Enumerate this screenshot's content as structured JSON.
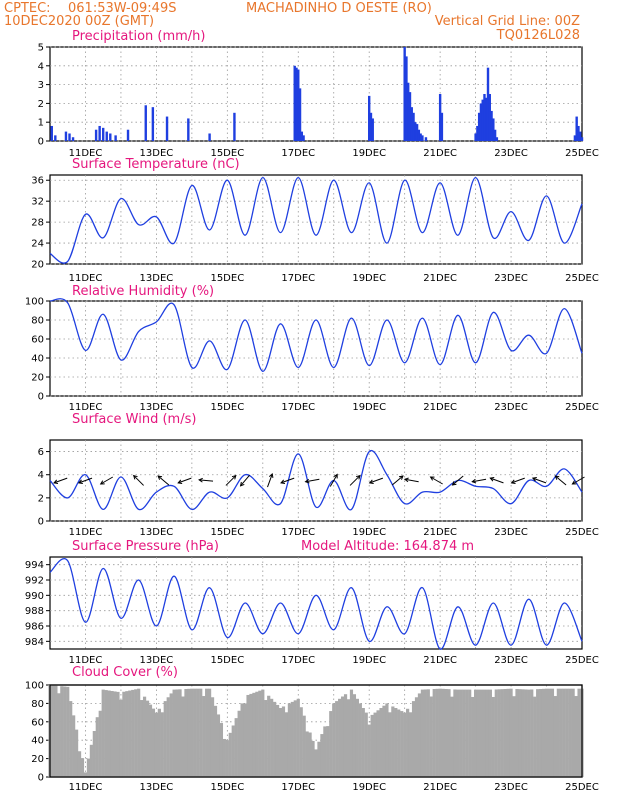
{
  "header": {
    "source": "CPTEC:",
    "coords": "061:53W-09:49S",
    "location": "MACHADINHO D OESTE (RO)",
    "datetime": "10DEC2020 00Z (GMT)",
    "grid_note": "Vertical Grid Line: 00Z",
    "code": "TQ0126L028"
  },
  "colors": {
    "header": "#e8762c",
    "panel_title": "#e5177e",
    "series": "#1f3fe0",
    "cloud": "#a9a9a9",
    "grid": "#9a9a9a"
  },
  "x_ticks": [
    "11DEC",
    "13DEC",
    "15DEC",
    "17DEC",
    "19DEC",
    "21DEC",
    "23DEC",
    "25DEC"
  ],
  "altitude_label": "Model Altitude: 164.874 m",
  "chart_data": [
    {
      "type": "bar",
      "title": "Precipitation (mm/h)",
      "ylim": [
        0,
        5
      ],
      "yticks": [
        0,
        1,
        2,
        3,
        4,
        5
      ],
      "x_day_range": [
        10,
        25
      ],
      "x": [
        10.05,
        10.15,
        10.45,
        10.55,
        10.65,
        11.3,
        11.4,
        11.5,
        11.6,
        11.7,
        11.85,
        12.2,
        12.7,
        12.9,
        13.3,
        13.9,
        14.5,
        15.2,
        16.9,
        16.95,
        17.0,
        17.05,
        17.1,
        17.15,
        19.0,
        19.05,
        19.1,
        20.0,
        20.05,
        20.1,
        20.15,
        20.2,
        20.25,
        20.3,
        20.35,
        20.4,
        20.45,
        20.5,
        20.6,
        21.0,
        21.05,
        22.0,
        22.05,
        22.1,
        22.15,
        22.2,
        22.25,
        22.3,
        22.35,
        22.4,
        22.45,
        22.5,
        22.55,
        22.6,
        24.8,
        24.85,
        24.9,
        24.95,
        25.0
      ],
      "values": [
        0.8,
        0.3,
        0.5,
        0.4,
        0.2,
        0.6,
        0.8,
        0.7,
        0.5,
        0.4,
        0.3,
        0.6,
        1.9,
        1.8,
        1.3,
        1.2,
        0.4,
        1.5,
        4.0,
        3.9,
        3.8,
        2.8,
        0.5,
        0.3,
        2.4,
        1.5,
        1.2,
        5.0,
        4.5,
        3.1,
        2.6,
        1.8,
        1.5,
        1.0,
        0.9,
        0.6,
        0.4,
        0.3,
        0.2,
        2.5,
        1.5,
        0.4,
        0.8,
        1.5,
        2.0,
        2.2,
        2.5,
        2.3,
        3.9,
        2.5,
        1.6,
        1.2,
        0.6,
        0.2,
        0.3,
        1.3,
        0.8,
        0.5,
        0.2
      ]
    },
    {
      "type": "line",
      "title": "Surface Temperature (nC)",
      "ylim": [
        20,
        37
      ],
      "yticks": [
        20,
        24,
        28,
        32,
        36
      ],
      "x": [
        10.0,
        10.5,
        11.0,
        11.5,
        12.0,
        12.5,
        13.0,
        13.5,
        14.0,
        14.5,
        15.0,
        15.5,
        16.0,
        16.5,
        17.0,
        17.5,
        18.0,
        18.5,
        19.0,
        19.5,
        20.0,
        20.5,
        21.0,
        21.5,
        22.0,
        22.5,
        23.0,
        23.5,
        24.0,
        24.5,
        25.0
      ],
      "values": [
        22.0,
        20.5,
        29.5,
        25.0,
        32.5,
        27.5,
        29.0,
        24.0,
        35.0,
        26.5,
        36.0,
        25.5,
        36.5,
        26.0,
        36.5,
        25.5,
        36.0,
        26.0,
        35.5,
        24.0,
        36.0,
        26.0,
        35.5,
        25.5,
        36.5,
        25.0,
        30.0,
        24.5,
        33.0,
        24.0,
        31.5
      ]
    },
    {
      "type": "line",
      "title": "Relative Humidity (%)",
      "ylim": [
        0,
        100
      ],
      "yticks": [
        0,
        20,
        40,
        60,
        80,
        100
      ],
      "x": [
        10.0,
        10.5,
        11.0,
        11.5,
        12.0,
        12.5,
        13.0,
        13.5,
        14.0,
        14.5,
        15.0,
        15.5,
        16.0,
        16.5,
        17.0,
        17.5,
        18.0,
        18.5,
        19.0,
        19.5,
        20.0,
        20.5,
        21.0,
        21.5,
        22.0,
        22.5,
        23.0,
        23.5,
        24.0,
        24.5,
        25.0
      ],
      "values": [
        100,
        98,
        48,
        86,
        38,
        68,
        78,
        96,
        30,
        58,
        28,
        80,
        26,
        76,
        30,
        80,
        30,
        82,
        32,
        80,
        35,
        82,
        33,
        85,
        35,
        88,
        48,
        64,
        45,
        92,
        45
      ]
    },
    {
      "type": "line",
      "title": "Surface Wind (m/s)",
      "ylim": [
        0,
        7
      ],
      "yticks": [
        0,
        2,
        4,
        6
      ],
      "x": [
        10.0,
        10.5,
        11.0,
        11.5,
        12.0,
        12.5,
        13.0,
        13.5,
        14.0,
        14.5,
        15.0,
        15.5,
        16.0,
        16.5,
        17.0,
        17.5,
        18.0,
        18.5,
        19.0,
        19.5,
        20.0,
        20.5,
        21.0,
        21.5,
        22.0,
        22.5,
        23.0,
        23.5,
        24.0,
        24.5,
        25.0
      ],
      "values": [
        3.5,
        2.0,
        4.0,
        1.0,
        3.8,
        1.0,
        2.5,
        3.0,
        1.0,
        2.5,
        2.0,
        4.0,
        2.8,
        1.5,
        5.8,
        1.2,
        3.5,
        1.0,
        6.0,
        4.0,
        1.5,
        2.5,
        2.5,
        3.5,
        3.0,
        2.8,
        1.5,
        3.5,
        3.0,
        4.5,
        2.5
      ],
      "arrows_x": [
        10.3,
        11.0,
        11.6,
        12.5,
        13.2,
        13.8,
        14.4,
        15.1,
        15.5,
        16.2,
        16.7,
        17.4,
        18.0,
        18.6,
        19.2,
        19.8,
        20.2,
        20.9,
        21.5,
        22.1,
        22.6,
        23.2,
        23.8,
        24.4,
        24.9
      ],
      "arrows_dir_deg": [
        200,
        200,
        210,
        135,
        140,
        200,
        175,
        45,
        230,
        70,
        200,
        190,
        60,
        45,
        200,
        40,
        170,
        150,
        220,
        190,
        160,
        200,
        160,
        140,
        210
      ]
    },
    {
      "type": "line",
      "title": "Surface Pressure (hPa)",
      "ylim": [
        983,
        995
      ],
      "yticks": [
        984,
        986,
        988,
        990,
        992,
        994
      ],
      "x": [
        10.0,
        10.5,
        11.0,
        11.5,
        12.0,
        12.5,
        13.0,
        13.5,
        14.0,
        14.5,
        15.0,
        15.5,
        16.0,
        16.5,
        17.0,
        17.5,
        18.0,
        18.5,
        19.0,
        19.5,
        20.0,
        20.5,
        21.0,
        21.5,
        22.0,
        22.5,
        23.0,
        23.5,
        24.0,
        24.5,
        25.0
      ],
      "values": [
        993.0,
        994.5,
        986.5,
        993.5,
        987.0,
        992.0,
        986.0,
        992.5,
        985.5,
        991.0,
        984.5,
        989.0,
        985.0,
        989.0,
        985.0,
        990.0,
        985.5,
        991.0,
        984.0,
        988.5,
        985.0,
        991.0,
        983.0,
        988.5,
        983.5,
        989.0,
        983.5,
        989.5,
        983.5,
        989.0,
        984.0
      ]
    },
    {
      "type": "area",
      "title": "Cloud Cover (%)",
      "ylim": [
        0,
        100
      ],
      "yticks": [
        0,
        20,
        40,
        60,
        80,
        100
      ],
      "x": [
        10.0,
        10.5,
        11.0,
        11.5,
        12.0,
        12.5,
        13.0,
        13.5,
        14.0,
        14.5,
        15.0,
        15.5,
        16.0,
        16.5,
        17.0,
        17.5,
        18.0,
        18.5,
        19.0,
        19.5,
        20.0,
        20.5,
        21.0,
        21.5,
        22.0,
        22.5,
        23.0,
        23.5,
        24.0,
        24.5,
        25.0
      ],
      "values": [
        100,
        98,
        5,
        95,
        92,
        96,
        70,
        95,
        96,
        96,
        40,
        88,
        95,
        75,
        85,
        30,
        80,
        95,
        65,
        80,
        70,
        95,
        96,
        95,
        95,
        95,
        96,
        95,
        96,
        96,
        96
      ]
    }
  ]
}
